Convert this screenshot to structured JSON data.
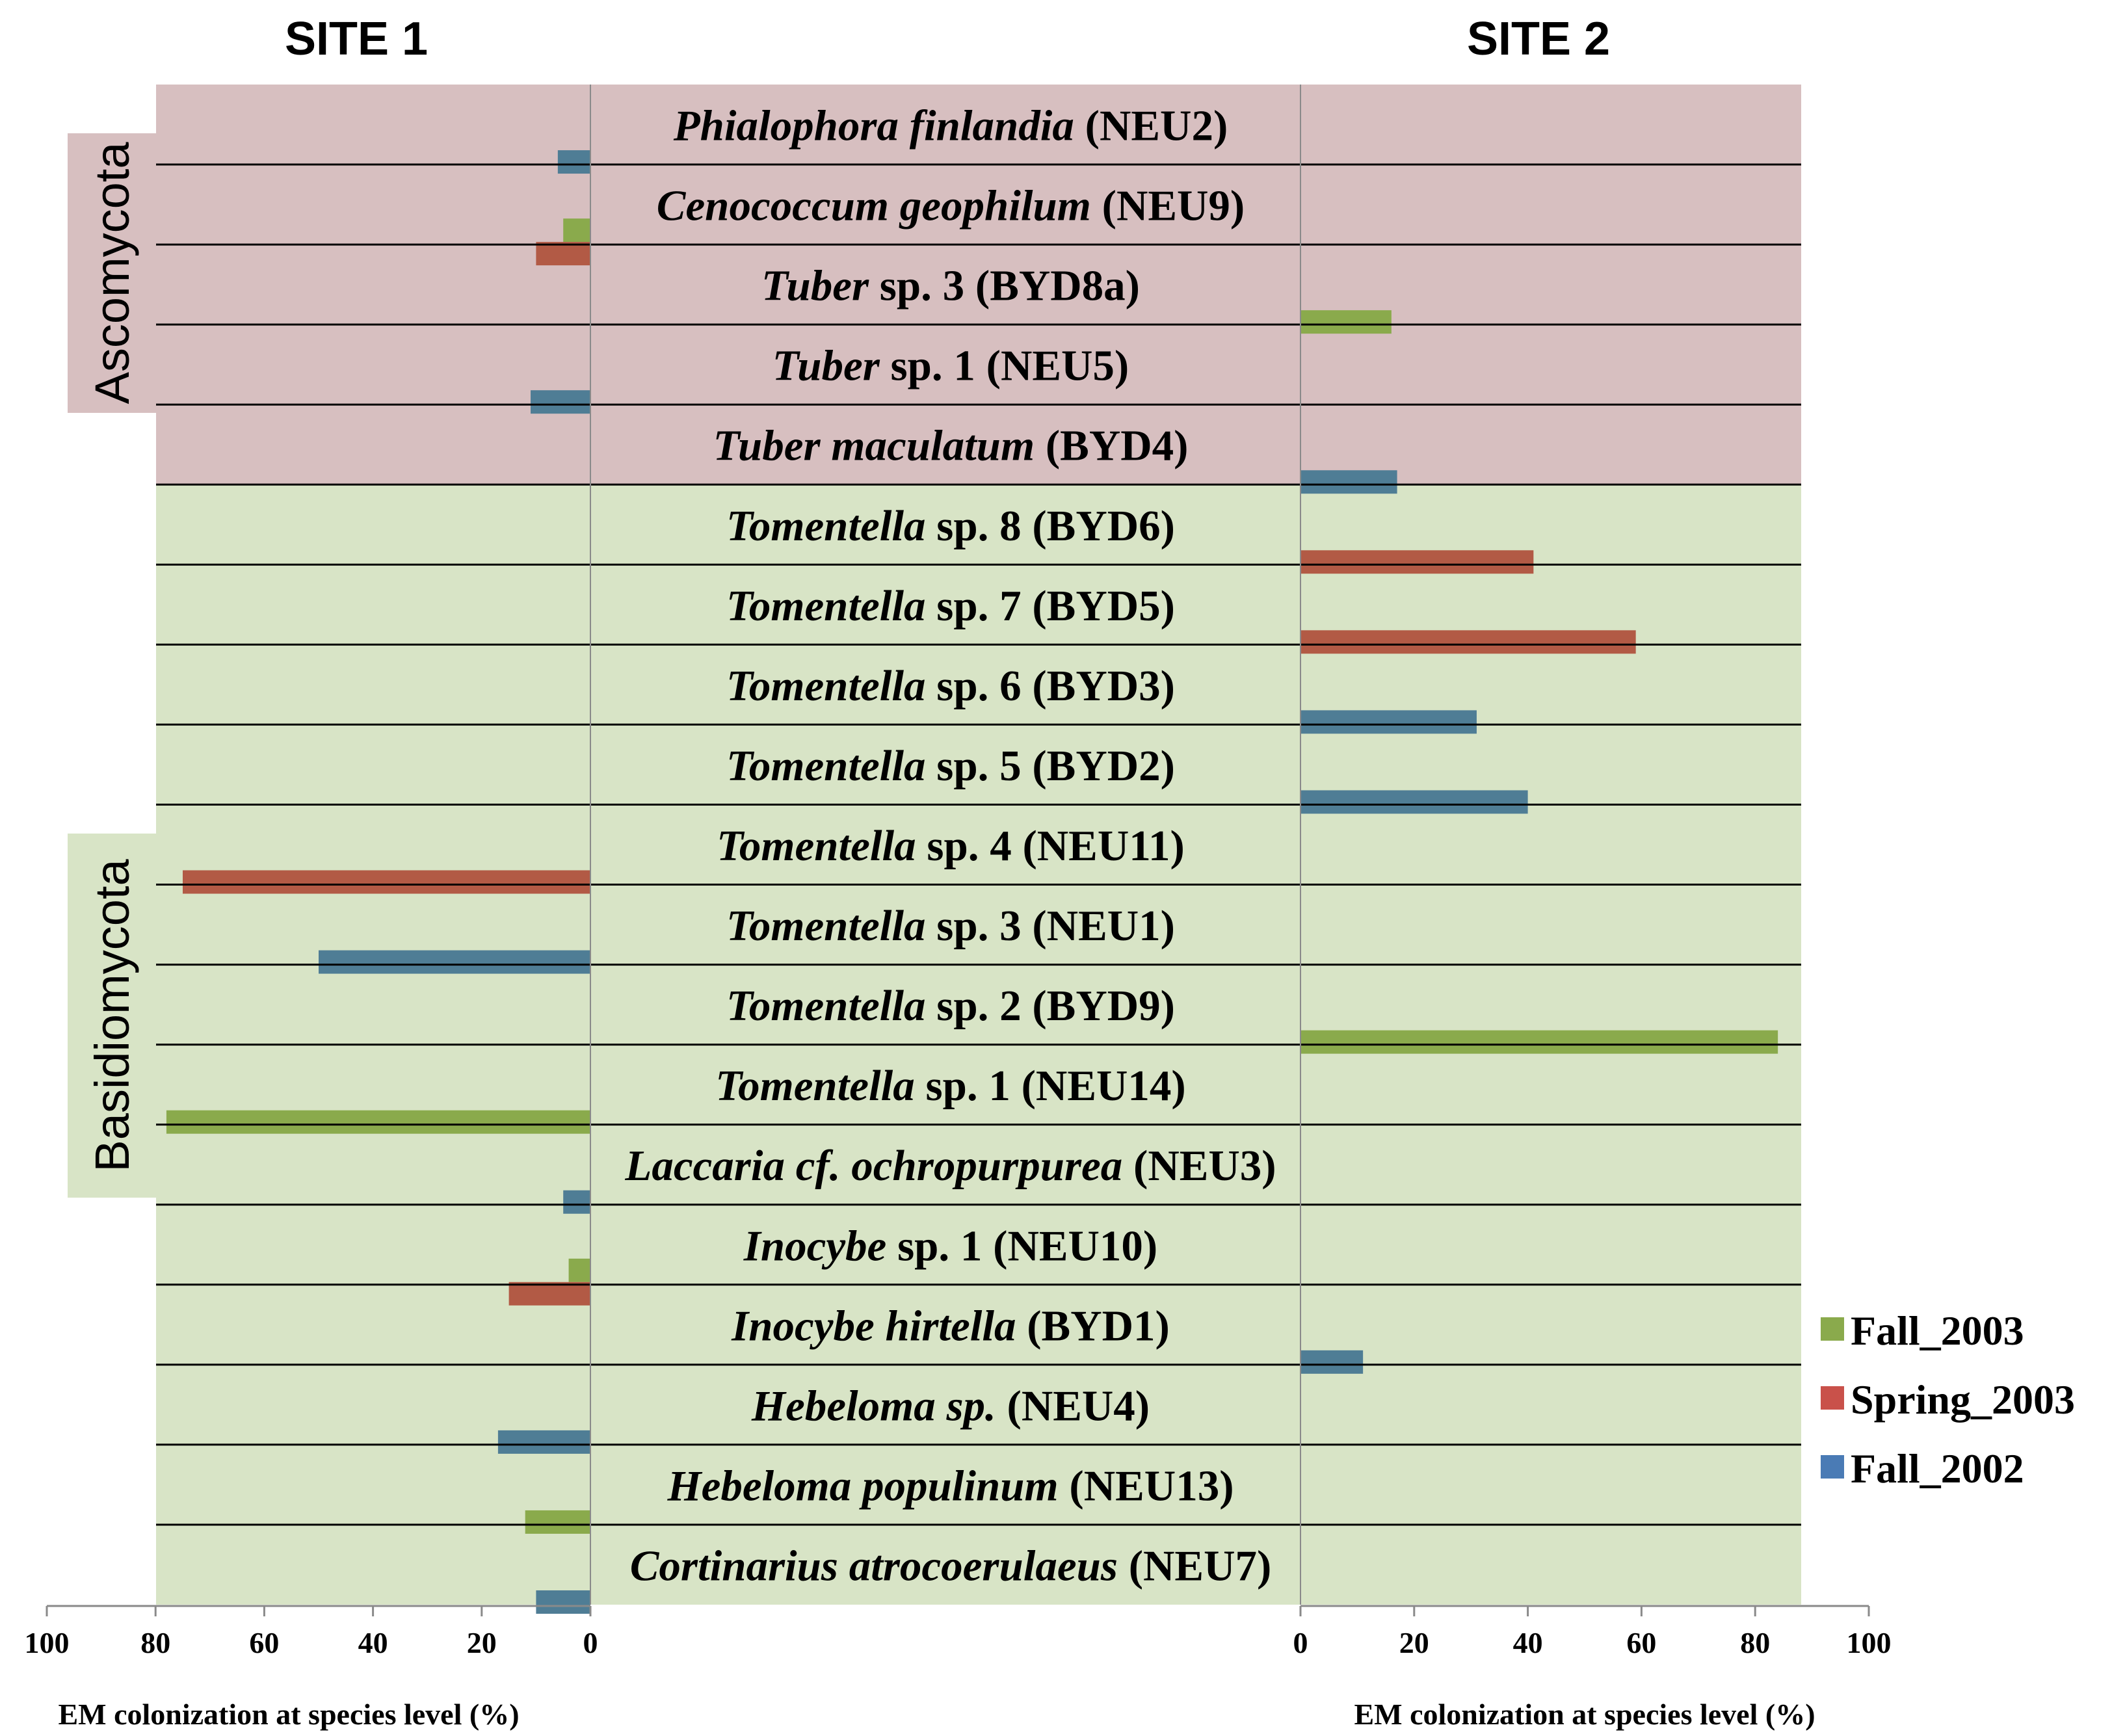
{
  "chart_data": {
    "type": "bar",
    "orientation": "horizontal-butterfly",
    "site_titles": [
      "SITE 1",
      "SITE 2"
    ],
    "xlabel": "EM colonization at species level (%)",
    "xlim": [
      0,
      100
    ],
    "ticks_site1": [
      "100",
      "80",
      "60",
      "40",
      "20",
      "0"
    ],
    "ticks_site2": [
      "0",
      "20",
      "40",
      "60",
      "80",
      "100"
    ],
    "colors": {
      "ascomycota_bg": "#d7bfc0",
      "basidiomycota_bg": "#d8e4c6",
      "Fall_2003": "#8aaa4c",
      "Spring_2003": "#b25a45",
      "Fall_2002": "#4f7d95"
    },
    "groups": [
      {
        "label": "Ascomycota",
        "first": 0,
        "last": 4
      },
      {
        "label": "Basidiomycota",
        "first": 5,
        "last": 18
      }
    ],
    "species": [
      {
        "italic": "Phialophora finlandia",
        "rest": " (NEU2)"
      },
      {
        "italic": "Cenococcum geophilum",
        "rest": " (NEU9)"
      },
      {
        "italic": "Tuber",
        "rest": " sp. 3 (BYD8a)"
      },
      {
        "italic": "Tuber",
        "rest": " sp. 1 (NEU5)"
      },
      {
        "italic": "Tuber maculatum",
        "rest": " (BYD4)"
      },
      {
        "italic": "Tomentella",
        "rest": " sp. 8 (BYD6)"
      },
      {
        "italic": "Tomentella",
        "rest": " sp. 7 (BYD5)"
      },
      {
        "italic": "Tomentella",
        "rest": " sp. 6 (BYD3)"
      },
      {
        "italic": "Tomentella",
        "rest": " sp. 5 (BYD2)"
      },
      {
        "italic": "Tomentella",
        "rest": " sp. 4 (NEU11)"
      },
      {
        "italic": "Tomentella",
        "rest": " sp. 3 (NEU1)"
      },
      {
        "italic": "Tomentella",
        "rest": " sp. 2 (BYD9)"
      },
      {
        "italic": "Tomentella",
        "rest": " sp. 1 (NEU14)"
      },
      {
        "italic": "Laccaria cf. ochropurpurea",
        "rest": " (NEU3)"
      },
      {
        "italic": "Inocybe",
        "rest": " sp. 1 (NEU10)"
      },
      {
        "italic": "Inocybe hirtella",
        "rest": " (BYD1)"
      },
      {
        "italic": "Hebeloma sp.",
        "rest": " (NEU4)"
      },
      {
        "italic": "Hebeloma populinum",
        "rest": " (NEU13)"
      },
      {
        "italic": "Cortinarius atrocoerulaeus",
        "rest": " (NEU7)"
      }
    ],
    "series": [
      {
        "name": "Fall_2003",
        "site1": [
          0,
          5,
          0,
          0,
          0,
          0,
          0,
          0,
          0,
          0,
          0,
          0,
          78,
          0,
          4,
          0,
          0,
          12,
          0
        ],
        "site2": [
          0,
          0,
          16,
          0,
          0,
          0,
          0,
          0,
          0,
          0,
          0,
          84,
          0,
          0,
          0,
          0,
          0,
          0,
          0
        ]
      },
      {
        "name": "Spring_2003",
        "site1": [
          0,
          10,
          0,
          0,
          0,
          0,
          0,
          0,
          0,
          75,
          0,
          0,
          0,
          0,
          15,
          0,
          0,
          0,
          0
        ],
        "site2": [
          0,
          0,
          0,
          0,
          0,
          41,
          59,
          0,
          0,
          0,
          0,
          0,
          0,
          0,
          0,
          0,
          0,
          0,
          0
        ]
      },
      {
        "name": "Fall_2002",
        "site1": [
          6,
          0,
          0,
          11,
          0,
          0,
          0,
          0,
          0,
          0,
          50,
          0,
          0,
          5,
          0,
          0,
          17,
          0,
          10
        ],
        "site2": [
          0,
          0,
          0,
          0,
          17,
          0,
          0,
          31,
          40,
          0,
          0,
          0,
          0,
          0,
          0,
          11,
          0,
          0,
          0
        ]
      }
    ],
    "legend": [
      {
        "name": "Fall_2003",
        "color": "#8aaa4c"
      },
      {
        "name": "Spring_2003",
        "color": "#c9514a"
      },
      {
        "name": "Fall_2002",
        "color": "#4a7bb5"
      }
    ]
  }
}
